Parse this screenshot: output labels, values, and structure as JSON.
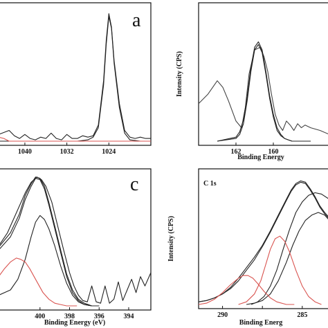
{
  "chart_data": [
    {
      "type": "line",
      "panel": "a",
      "letter": "a",
      "x_reversed": true,
      "xlim": [
        1045,
        1016
      ],
      "ylim": [
        0,
        1
      ],
      "xticks": [
        1040,
        1032,
        1024
      ],
      "xtick_labels": [
        "1040",
        "1032",
        "1024"
      ],
      "xlabel": "",
      "ylabel": "",
      "series": [
        {
          "color": "#222222",
          "x": [
            1045,
            1043,
            1042,
            1041,
            1040,
            1039,
            1038,
            1037,
            1036,
            1035,
            1034,
            1033,
            1032,
            1031,
            1030,
            1029,
            1028,
            1027,
            1026,
            1025,
            1024.5,
            1024,
            1023.5,
            1023,
            1022,
            1021,
            1020,
            1019,
            1018,
            1017,
            1016
          ],
          "y": [
            0.05,
            0.08,
            0.04,
            0.02,
            0.05,
            0.02,
            0.01,
            0.03,
            0.02,
            0.06,
            0.02,
            0.01,
            0.05,
            0.02,
            0.02,
            0.04,
            0.03,
            0.04,
            0.12,
            0.45,
            0.75,
            0.95,
            0.85,
            0.6,
            0.28,
            0.08,
            0.03,
            0.02,
            0.03,
            0.02,
            0.02
          ]
        },
        {
          "color": "#222222",
          "x": [
            1045,
            1040,
            1035,
            1030,
            1028,
            1027,
            1026,
            1025,
            1024.5,
            1024,
            1023.5,
            1023,
            1022,
            1021,
            1020,
            1018,
            1016
          ],
          "y": [
            0.0,
            0.0,
            0.0,
            0.0,
            0.01,
            0.03,
            0.1,
            0.42,
            0.72,
            0.93,
            0.84,
            0.58,
            0.25,
            0.06,
            0.01,
            0.0,
            0.0
          ]
        },
        {
          "color": "#d9534f",
          "x": [
            1045,
            1044,
            1043,
            1042,
            1041,
            1040,
            1038,
            1036,
            1030,
            1020,
            1016
          ],
          "y": [
            0.03,
            0.02,
            0.0,
            0.0,
            0.0,
            0.0,
            0.0,
            0.0,
            0.0,
            0.0,
            0.0
          ]
        }
      ]
    },
    {
      "type": "line",
      "panel": "b",
      "letter": "",
      "x_reversed": true,
      "xlim": [
        164,
        157
      ],
      "ylim": [
        0,
        1
      ],
      "xticks": [
        162,
        160
      ],
      "xtick_labels": [
        "162",
        "160"
      ],
      "xlabel": "Binding Energy",
      "ylabel": "Intensity (CPS)",
      "series": [
        {
          "color": "#444444",
          "x": [
            164,
            163.5,
            163,
            162.7,
            162.4,
            162,
            161.7,
            161.5,
            161.3,
            161,
            160.7,
            160.5,
            160.3,
            160.1,
            159.9,
            159.7,
            159.5,
            159.3,
            159.1,
            158.9,
            158.7,
            158.5,
            158.3,
            158,
            157.5,
            157
          ],
          "y": [
            0.28,
            0.35,
            0.45,
            0.4,
            0.3,
            0.15,
            0.1,
            0.25,
            0.5,
            0.68,
            0.7,
            0.63,
            0.52,
            0.35,
            0.2,
            0.12,
            0.08,
            0.15,
            0.12,
            0.08,
            0.13,
            0.1,
            0.12,
            0.1,
            0.08,
            0.05
          ]
        },
        {
          "color": "#222222",
          "x": [
            163,
            162,
            161.8,
            161.6,
            161.4,
            161.2,
            161,
            160.8,
            160.6,
            160.4,
            160.2,
            160,
            159.8,
            159.6,
            159.4,
            159.2,
            159,
            158.5,
            158
          ],
          "y": [
            0.0,
            0.02,
            0.05,
            0.13,
            0.3,
            0.52,
            0.68,
            0.72,
            0.66,
            0.5,
            0.32,
            0.18,
            0.08,
            0.04,
            0.02,
            0.01,
            0.0,
            0.0,
            0.0
          ]
        },
        {
          "color": "#222222",
          "x": [
            163,
            162,
            161.8,
            161.6,
            161.4,
            161.2,
            161,
            160.8,
            160.6,
            160.4,
            160.2,
            160,
            159.8,
            159.6,
            159.4,
            159.2,
            159,
            158.5,
            158
          ],
          "y": [
            0.0,
            0.03,
            0.07,
            0.16,
            0.33,
            0.55,
            0.7,
            0.74,
            0.68,
            0.52,
            0.34,
            0.2,
            0.1,
            0.05,
            0.02,
            0.01,
            0.0,
            0.0,
            0.0
          ]
        }
      ]
    },
    {
      "type": "line",
      "panel": "c",
      "letter": "c",
      "x_reversed": true,
      "xlim": [
        402.8,
        392.5
      ],
      "ylim": [
        0,
        1
      ],
      "xticks": [
        400,
        398,
        396,
        394
      ],
      "xtick_labels": [
        "400",
        "398",
        "396",
        "394"
      ],
      "xlabel": "Binding Energy (eV)",
      "ylabel": "",
      "series": [
        {
          "color": "#222222",
          "x": [
            402.8,
            402.2,
            401.6,
            401,
            400.6,
            400.2,
            399.9,
            399.6,
            399.2,
            398.8,
            398.4,
            398,
            397.7,
            397.4,
            397.1,
            396.8,
            396.5,
            396.2,
            395.9,
            395.6,
            395.3,
            395,
            394.7,
            394.4,
            394.1,
            393.8,
            393.5,
            393.2,
            392.9,
            392.5
          ],
          "y": [
            0.45,
            0.55,
            0.7,
            0.85,
            0.93,
            0.97,
            0.95,
            0.9,
            0.78,
            0.6,
            0.42,
            0.25,
            0.15,
            0.08,
            0.04,
            0.03,
            0.15,
            0.03,
            0.02,
            0.15,
            0.02,
            0.05,
            0.18,
            0.04,
            0.12,
            0.2,
            0.1,
            0.22,
            0.15,
            0.25
          ]
        },
        {
          "color": "#222222",
          "x": [
            402.8,
            402,
            401.4,
            401,
            400.6,
            400.3,
            400,
            399.7,
            399.4,
            399,
            398.6,
            398.2,
            397.8,
            397.4,
            397,
            396.5,
            396
          ],
          "y": [
            0.42,
            0.52,
            0.66,
            0.8,
            0.9,
            0.96,
            0.95,
            0.88,
            0.76,
            0.58,
            0.4,
            0.22,
            0.1,
            0.04,
            0.01,
            0.0,
            0.0
          ]
        },
        {
          "color": "#222222",
          "x": [
            402.8,
            402,
            401.4,
            401,
            400.6,
            400.3,
            400,
            399.7,
            399.4,
            399,
            398.6,
            398.2,
            397.8,
            397.4,
            397,
            396.5,
            396
          ],
          "y": [
            0.44,
            0.55,
            0.69,
            0.83,
            0.92,
            0.97,
            0.96,
            0.9,
            0.78,
            0.6,
            0.42,
            0.24,
            0.12,
            0.05,
            0.02,
            0.0,
            0.0
          ]
        },
        {
          "color": "#222222",
          "x": [
            402.8,
            402,
            401.5,
            401,
            400.6,
            400.3,
            400,
            399.7,
            399.4,
            399,
            398.6,
            398.2,
            397.8,
            397.4,
            397,
            396.5,
            396
          ],
          "y": [
            0.08,
            0.12,
            0.2,
            0.35,
            0.52,
            0.63,
            0.68,
            0.65,
            0.58,
            0.45,
            0.3,
            0.17,
            0.08,
            0.03,
            0.01,
            0.0,
            0.0
          ]
        },
        {
          "color": "#d9534f",
          "x": [
            402.8,
            402.4,
            402,
            401.6,
            401.3,
            401,
            400.7,
            400.4,
            400.1,
            399.8,
            399.4,
            399,
            398.6,
            398.2,
            397.8,
            397.5
          ],
          "y": [
            0.22,
            0.28,
            0.33,
            0.36,
            0.35,
            0.33,
            0.28,
            0.22,
            0.16,
            0.1,
            0.05,
            0.02,
            0.01,
            0.0,
            0.0,
            0.0
          ]
        }
      ]
    },
    {
      "type": "line",
      "panel": "d",
      "letter": "",
      "panel_tag": "C 1s",
      "x_reversed": true,
      "xlim": [
        291.5,
        283.3
      ],
      "ylim": [
        0,
        1
      ],
      "xticks": [
        290,
        287.5,
        285
      ],
      "xtick_labels": [
        "290",
        "",
        "285"
      ],
      "xlabel": "Binding Energ",
      "ylabel": "Intensity (CPS)",
      "series": [
        {
          "color": "#222222",
          "x": [
            291.5,
            291,
            290.5,
            290,
            289.5,
            289,
            288.5,
            288,
            287.5,
            287,
            286.5,
            286,
            285.7,
            285.4,
            285.1,
            284.8,
            284.5,
            284.2,
            283.9,
            283.6,
            283.3
          ],
          "y": [
            0.02,
            0.03,
            0.05,
            0.08,
            0.13,
            0.2,
            0.28,
            0.36,
            0.45,
            0.56,
            0.68,
            0.8,
            0.87,
            0.92,
            0.94,
            0.93,
            0.88,
            0.82,
            0.75,
            0.7,
            0.66
          ]
        },
        {
          "color": "#222222",
          "x": [
            291.5,
            291,
            290.5,
            290,
            289.5,
            289,
            288.5,
            288,
            287.5,
            287,
            286.5,
            286,
            285.7,
            285.4,
            285.1,
            284.8,
            284.5,
            284.2,
            283.9,
            283.6,
            283.3
          ],
          "y": [
            0.02,
            0.03,
            0.05,
            0.08,
            0.12,
            0.18,
            0.26,
            0.34,
            0.44,
            0.55,
            0.67,
            0.79,
            0.86,
            0.91,
            0.93,
            0.92,
            0.87,
            0.81,
            0.74,
            0.69,
            0.65
          ]
        },
        {
          "color": "#222222",
          "x": [
            288.5,
            288,
            287.5,
            287,
            286.5,
            286,
            285.6,
            285.2,
            284.8,
            284.4,
            284,
            283.6,
            283.3
          ],
          "y": [
            0.0,
            0.01,
            0.03,
            0.08,
            0.18,
            0.32,
            0.45,
            0.56,
            0.64,
            0.68,
            0.7,
            0.68,
            0.64
          ]
        },
        {
          "color": "#222222",
          "x": [
            288.2,
            287.8,
            287.4,
            287,
            286.6,
            286.2,
            285.8,
            285.4,
            285,
            284.6,
            284.2,
            283.8,
            283.3
          ],
          "y": [
            0.0,
            0.02,
            0.06,
            0.14,
            0.26,
            0.42,
            0.57,
            0.7,
            0.78,
            0.83,
            0.85,
            0.84,
            0.8
          ]
        },
        {
          "color": "#d9534f",
          "x": [
            291.5,
            291,
            290.5,
            290,
            289.5,
            289,
            288.7,
            288.4,
            288.1,
            287.8,
            287.4,
            287,
            286.6,
            286,
            285.5
          ],
          "y": [
            0.0,
            0.01,
            0.04,
            0.09,
            0.15,
            0.2,
            0.22,
            0.22,
            0.2,
            0.16,
            0.1,
            0.05,
            0.02,
            0.0,
            0.0
          ]
        },
        {
          "color": "#d9534f",
          "x": [
            289,
            288.5,
            288,
            287.6,
            287.3,
            287,
            286.7,
            286.4,
            286.1,
            285.8,
            285.4,
            285,
            284.6,
            284.2,
            283.8
          ],
          "y": [
            0.0,
            0.02,
            0.08,
            0.18,
            0.3,
            0.42,
            0.5,
            0.52,
            0.48,
            0.4,
            0.26,
            0.14,
            0.06,
            0.02,
            0.0
          ]
        }
      ]
    }
  ]
}
